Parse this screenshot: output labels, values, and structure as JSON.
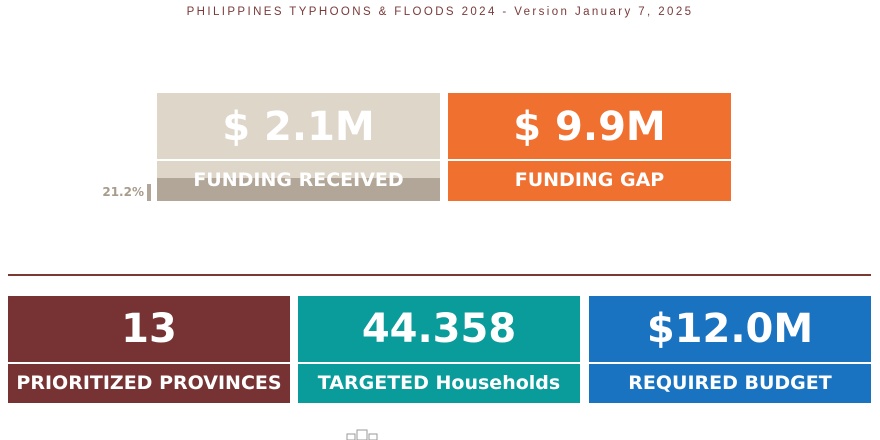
{
  "header": {
    "title": "PHILIPPINES TYPHOONS & FLOODS 2024 - Version January 7, 2025"
  },
  "funding": {
    "received": {
      "amount": "$ 2.1M",
      "label": "FUNDING RECEIVED",
      "share": {
        "value": 21.2,
        "label": "21.2%"
      }
    },
    "gap": {
      "amount": "$ 9.9M",
      "label": "FUNDING GAP"
    }
  },
  "kpis": [
    {
      "value": "13",
      "label": "PRIORITIZED PROVINCES"
    },
    {
      "value": "44.358",
      "label": "TARGETED Households"
    },
    {
      "value": "$12.0M",
      "label": "REQUIRED BUDGET"
    }
  ]
}
